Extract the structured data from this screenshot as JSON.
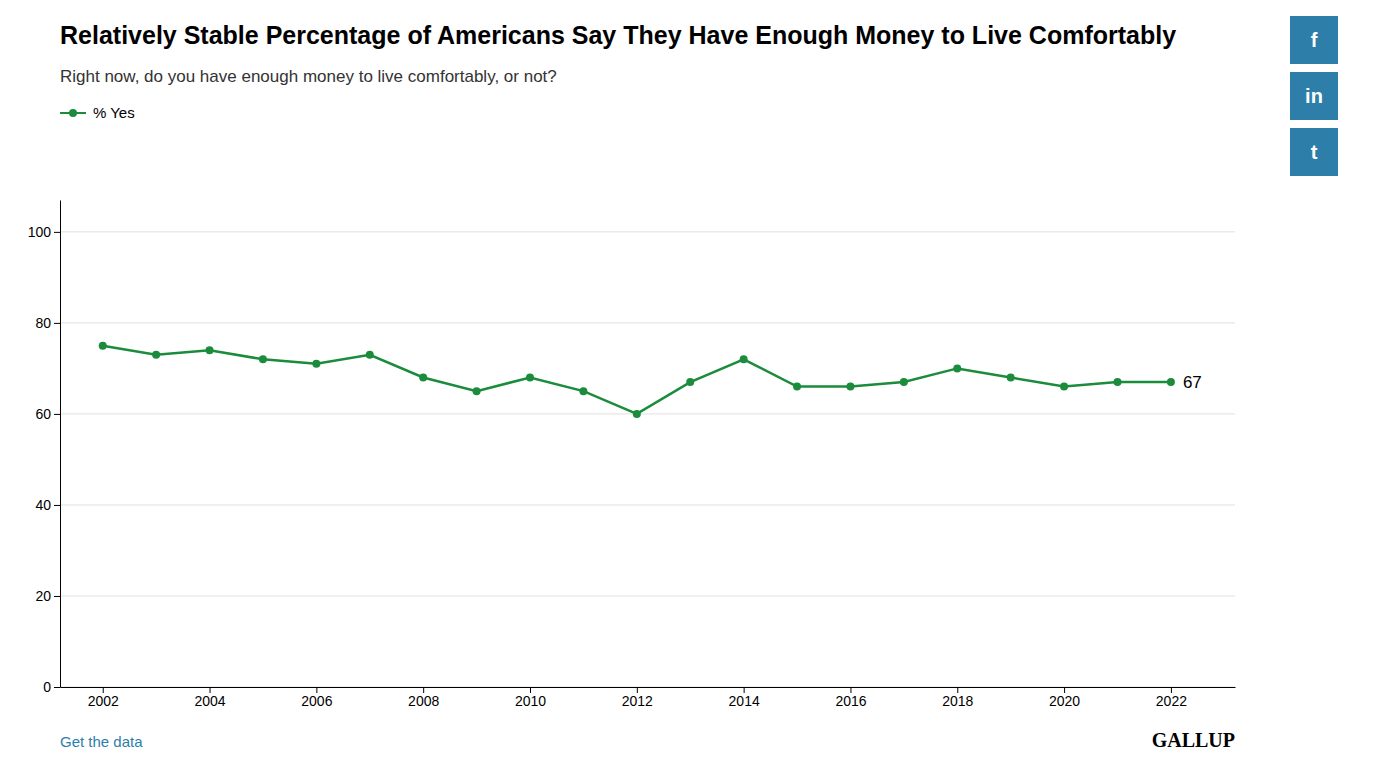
{
  "chart_data": {
    "type": "line",
    "title": "Relatively Stable Percentage of Americans Say They Have Enough Money to Live Comfortably",
    "subtitle": "Right now, do you have enough money to live comfortably, or not?",
    "x": [
      2002,
      2003,
      2004,
      2005,
      2006,
      2007,
      2008,
      2009,
      2010,
      2011,
      2012,
      2013,
      2014,
      2015,
      2016,
      2017,
      2018,
      2019,
      2020,
      2021,
      2022
    ],
    "series": [
      {
        "name": "% Yes",
        "color": "#1a8c3c",
        "marker": "circle",
        "values": [
          75,
          73,
          74,
          72,
          71,
          73,
          68,
          65,
          68,
          65,
          60,
          67,
          72,
          66,
          66,
          67,
          70,
          68,
          66,
          67,
          67
        ]
      }
    ],
    "xlim": [
      2001.2,
      2023.2
    ],
    "xticks": [
      2002,
      2004,
      2006,
      2008,
      2010,
      2012,
      2014,
      2016,
      2018,
      2020,
      2022
    ],
    "ylim": [
      0,
      107
    ],
    "yticks": [
      0,
      20,
      40,
      60,
      80,
      100
    ],
    "grid": true,
    "legend": "top-left",
    "annotations": [
      {
        "text": "67",
        "x": 2022,
        "y": 67
      }
    ],
    "footer": [
      "Get the data",
      "GALLUP"
    ],
    "social": [
      "f",
      "in",
      "t"
    ]
  }
}
